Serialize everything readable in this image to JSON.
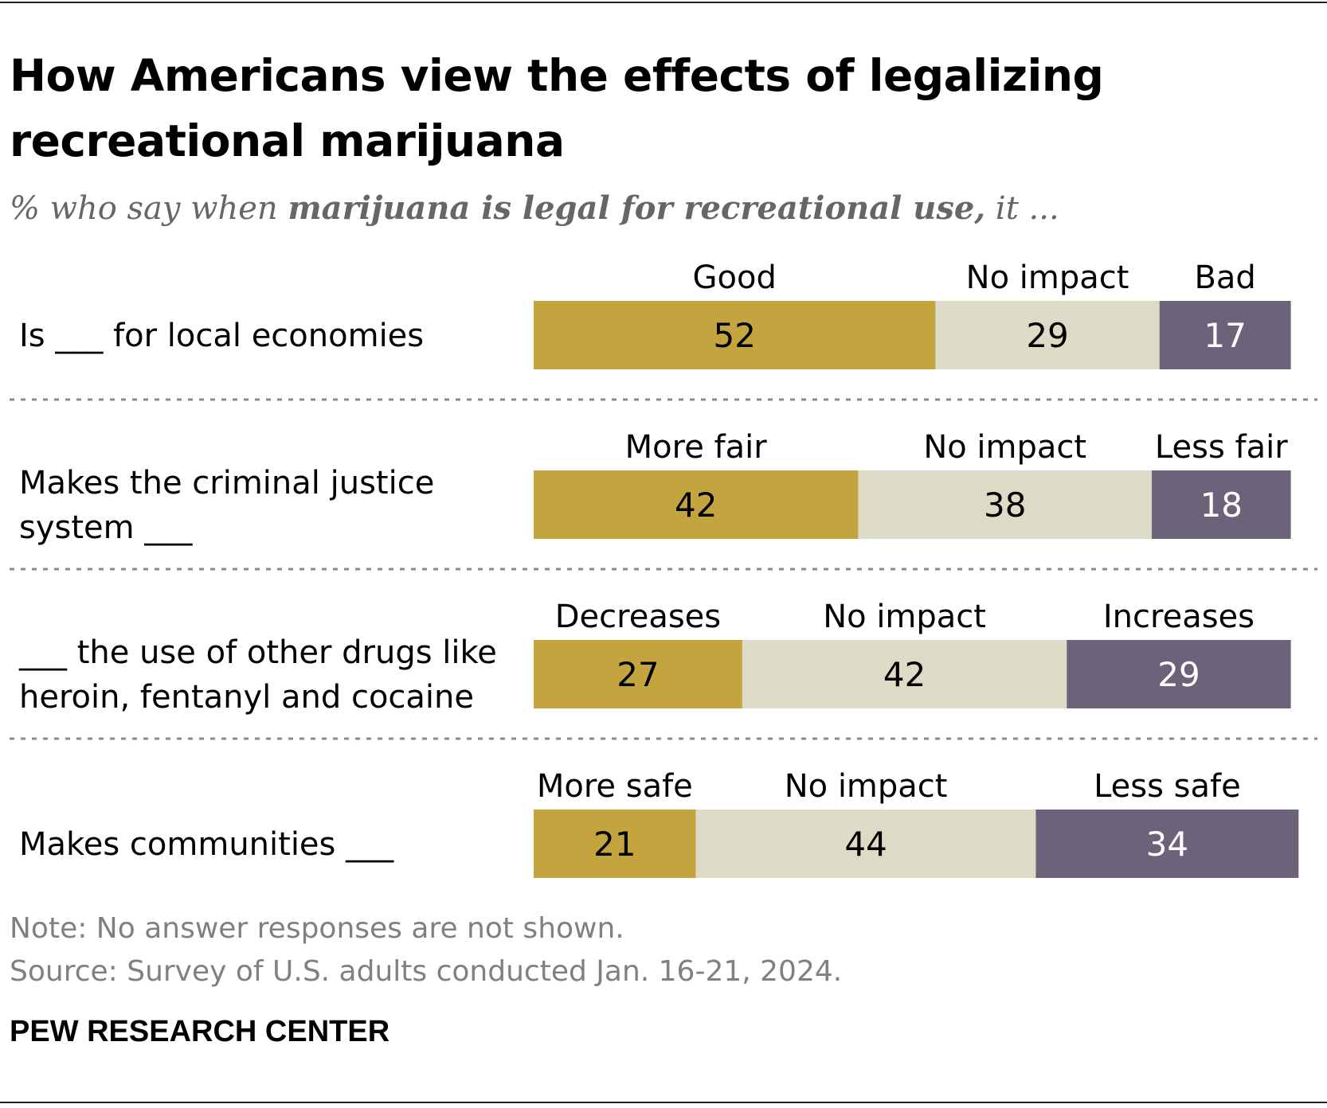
{
  "title": "How Americans view the effects of legalizing recreational marijuana",
  "subtitle": {
    "prefix": "% who say when ",
    "emphasis": "marijuana is legal for recreational use,",
    "suffix": " it ..."
  },
  "chart_data": {
    "type": "bar",
    "orientation": "horizontal",
    "stacked": true,
    "colors": [
      "#c4a43f",
      "#dddac6",
      "#6c6279"
    ],
    "value_text_colors": [
      "#000000",
      "#000000",
      "#ffffff"
    ],
    "categories": [
      "Is ___ for local economies",
      "Makes the criminal justice system ___",
      "___ the use of other drugs like heroin, fentanyl and cocaine",
      "Makes communities ___"
    ],
    "category_lines": [
      [
        "Is ___ for local economies"
      ],
      [
        "Makes the criminal justice",
        "system ___"
      ],
      [
        "___ the use of other drugs like",
        "heroin, fentanyl and cocaine"
      ],
      [
        "Makes communities ___"
      ]
    ],
    "segment_labels": [
      [
        "Good",
        "No impact",
        "Bad"
      ],
      [
        "More fair",
        "No impact",
        "Less fair"
      ],
      [
        "Decreases",
        "No impact",
        "Increases"
      ],
      [
        "More safe",
        "No impact",
        "Less safe"
      ]
    ],
    "values": [
      [
        52,
        29,
        17
      ],
      [
        42,
        38,
        18
      ],
      [
        27,
        42,
        29
      ],
      [
        21,
        44,
        34
      ]
    ],
    "xlim": [
      0,
      100
    ],
    "grid": false,
    "legend": "none"
  },
  "note": "Note: No answer responses are not shown.",
  "source": "Source: Survey of U.S. adults conducted Jan. 16-21, 2024.",
  "brand": "PEW RESEARCH CENTER"
}
